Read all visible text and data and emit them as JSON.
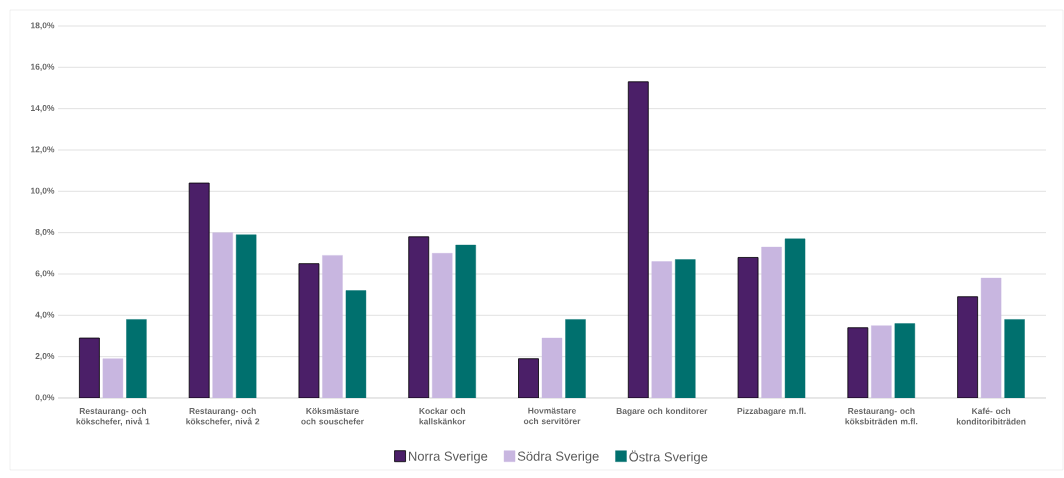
{
  "chart_data": {
    "type": "bar",
    "categories": [
      "Restaurang- och kökschefer, nivå 1",
      "Restaurang- och kökschefer, nivå 2",
      "Köksmästare och souschefer",
      "Kockar och kallskänkor",
      "Hovmästare och servitörer",
      "Bagare och konditorer",
      "Pizzabagare m.fl.",
      "Restaurang- och köksbiträden m.fl.",
      "Kafé- och konditoribiträden"
    ],
    "series": [
      {
        "name": "Norra Sverige",
        "color": "#4b1f68",
        "values": [
          2.9,
          10.4,
          6.5,
          7.8,
          1.9,
          15.3,
          6.8,
          3.4,
          4.9
        ]
      },
      {
        "name": "Södra Sverige",
        "color": "#c8b6e0",
        "values": [
          1.9,
          8.0,
          6.9,
          7.0,
          2.9,
          6.6,
          7.3,
          3.5,
          5.8
        ]
      },
      {
        "name": "Östra Sverige",
        "color": "#00706e",
        "values": [
          3.8,
          7.9,
          5.2,
          7.4,
          3.8,
          6.7,
          7.7,
          3.6,
          3.8
        ]
      }
    ],
    "ylim": [
      0,
      18
    ],
    "yticks": [
      {
        "value": 0,
        "label": "0,0%"
      },
      {
        "value": 2,
        "label": "2,0%"
      },
      {
        "value": 4,
        "label": "4,0%"
      },
      {
        "value": 6,
        "label": "6,0%"
      },
      {
        "value": 8,
        "label": "8,0%"
      },
      {
        "value": 10,
        "label": "10,0%"
      },
      {
        "value": 12,
        "label": "12,0%"
      },
      {
        "value": 14,
        "label": "14,0%"
      },
      {
        "value": 16,
        "label": "16,0%"
      },
      {
        "value": 18,
        "label": "18,0%"
      }
    ],
    "grid": "y",
    "legend": "bottom"
  }
}
